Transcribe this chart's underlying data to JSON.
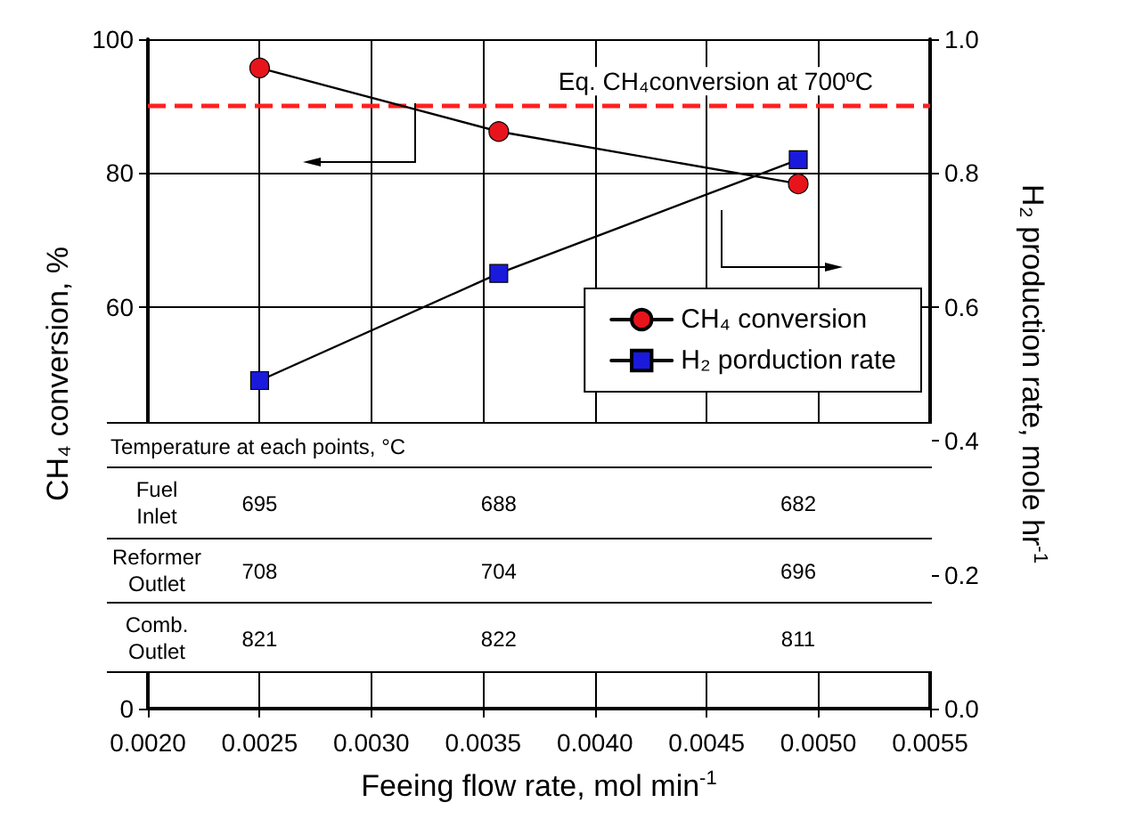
{
  "chart_data": {
    "type": "line",
    "xlabel": "Feeing flow rate, mol min$^{-1}$",
    "ylabel": "CH₄ conversion, %",
    "y2label": "H₂ production rate, mole hr$^{-1}$",
    "x": [
      0.0025,
      0.00357,
      0.00491
    ],
    "series": [
      {
        "name": "CH₄ conversion",
        "color": "#e8141b",
        "marker": "circle",
        "values": [
          95.7,
          86.2,
          78.4
        ]
      },
      {
        "name": "H₂ porduction rate",
        "color": "#1a1adc",
        "marker": "square",
        "axis": "y2",
        "values": [
          0.49,
          0.65,
          0.82
        ]
      }
    ],
    "xlim": [
      0.002,
      0.0055
    ],
    "xticks": [
      {
        "value": 0.002,
        "label": "0.0020"
      },
      {
        "value": 0.0025,
        "label": "0.0025"
      },
      {
        "value": 0.003,
        "label": "0.0030"
      },
      {
        "value": 0.0035,
        "label": "0.0035"
      },
      {
        "value": 0.004,
        "label": "0.0040"
      },
      {
        "value": 0.0045,
        "label": "0.0045"
      },
      {
        "value": 0.005,
        "label": "0.0050"
      },
      {
        "value": 0.0055,
        "label": "0.0055"
      }
    ],
    "ylim": [
      0,
      100
    ],
    "yticks": [
      0,
      60,
      80,
      100
    ],
    "y2lim": [
      0,
      1
    ],
    "y2ticks": [
      {
        "value": 0,
        "label": "0.0"
      },
      0.2,
      0.4,
      0.6,
      0.8,
      {
        "value": 1,
        "label": "1.0"
      }
    ],
    "ref_lines": [
      {
        "axis": "y",
        "value": 90,
        "label": "Eq. CH₄conversion at 700ºC",
        "color": "#ff2020",
        "line_style": "dashed"
      }
    ],
    "annotations": [
      "Temperature at each points,  °C",
      "Fuel\nInlet",
      "695",
      "688",
      "682",
      "Reformer\nOutlet",
      "708",
      "704",
      "696",
      "Comb.\nOutlet",
      "821",
      "822",
      "811"
    ],
    "grid": true,
    "legend": "right",
    "line_style": "solid"
  }
}
